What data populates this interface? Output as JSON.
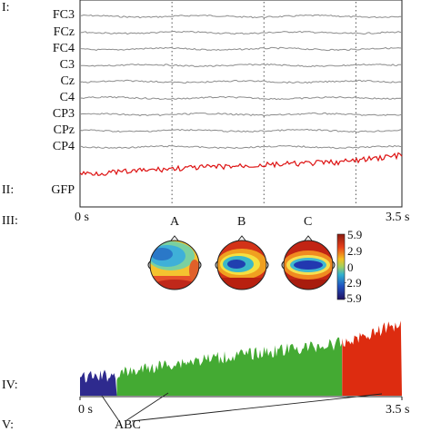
{
  "panel_labels": {
    "I": "I:",
    "II": "II:",
    "III": "III:",
    "IV": "IV:",
    "V": "V:"
  },
  "channels": [
    "FC3",
    "FCz",
    "FC4",
    "C3",
    "Cz",
    "C4",
    "CP3",
    "CPz",
    "CP4"
  ],
  "gfp_label": "GFP",
  "time_axis": {
    "start": "0 s",
    "end": "3.5 s",
    "dashed_markers_s": [
      1.0,
      2.0,
      3.0
    ]
  },
  "maps": [
    "A",
    "B",
    "C"
  ],
  "colorbar": {
    "ticks": [
      "5.9",
      "2.9",
      "0",
      "−2.9",
      "−5.9"
    ],
    "range": [
      -5.9,
      5.9
    ]
  },
  "bottom_axis": {
    "start": "0 s",
    "end": "3.5 s"
  },
  "segment_labels": "ABC",
  "colors": {
    "trace": "#8c8c8c",
    "gfp": "#dd1111",
    "A": "#2e2a8e",
    "B": "#44aa33",
    "C": "#dd2c10"
  },
  "chart_data": {
    "type": "area",
    "xlabel": "",
    "ylabel": "",
    "xlim": [
      0,
      3.5
    ],
    "segments": [
      {
        "name": "A",
        "start_s": 0.0,
        "end_s": 0.4
      },
      {
        "name": "B",
        "start_s": 0.4,
        "end_s": 2.85
      },
      {
        "name": "C",
        "start_s": 2.85,
        "end_s": 3.5
      }
    ],
    "gfp_trend": {
      "x": [
        0,
        0.4,
        1.0,
        2.0,
        2.85,
        3.5
      ],
      "y": [
        0.25,
        0.3,
        0.45,
        0.6,
        0.72,
        1.0
      ]
    }
  }
}
